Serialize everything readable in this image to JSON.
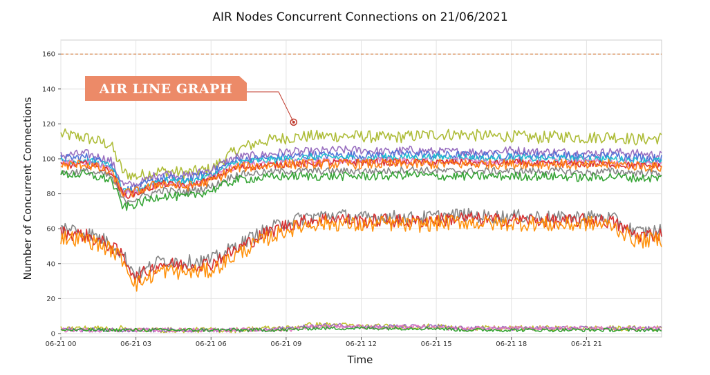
{
  "chart_data": {
    "type": "line",
    "title": "AIR Nodes Concurrent Connections on 21/06/2021",
    "xlabel": "Time",
    "ylabel": "Number of Concurrent Connections",
    "x_ticks": [
      "06-21 00",
      "06-21 03",
      "06-21 06",
      "06-21 09",
      "06-21 12",
      "06-21 15",
      "06-21 18",
      "06-21 21"
    ],
    "x_tick_hours": [
      0,
      3,
      6,
      9,
      12,
      15,
      18,
      21
    ],
    "xlim_hours": [
      0,
      24
    ],
    "y_ticks": [
      0,
      20,
      40,
      60,
      80,
      100,
      120,
      140,
      160
    ],
    "ylim": [
      -2,
      168
    ],
    "grid": true,
    "threshold": {
      "value": 160,
      "color": "#d2691e",
      "style": "dashed"
    },
    "annotation": {
      "text": "AIR LINE GRAPH",
      "point_hour": 9.3,
      "point_value": 121,
      "fill": "#ec8a68",
      "point_color": "#c0392b"
    },
    "x_hours": [
      0,
      1,
      2,
      2.5,
      3,
      4,
      5,
      6,
      7,
      8,
      9,
      10,
      11,
      12,
      13,
      14,
      15,
      16,
      17,
      18,
      19,
      20,
      21,
      22,
      23,
      24
    ],
    "series": [
      {
        "color": "#a9b82c",
        "noise": 3.5,
        "values": [
          114,
          112,
          108,
          92,
          90,
          93,
          92,
          94,
          105,
          110,
          112,
          113,
          113,
          113,
          112,
          113,
          114,
          114,
          113,
          113,
          112,
          113,
          112,
          113,
          111,
          112
        ]
      },
      {
        "color": "#9467bd",
        "noise": 2.5,
        "values": [
          102,
          103,
          99,
          85,
          85,
          92,
          90,
          94,
          101,
          102,
          104,
          104,
          105,
          105,
          104,
          105,
          104,
          104,
          104,
          105,
          104,
          104,
          103,
          104,
          103,
          102
        ]
      },
      {
        "color": "#4a6fd6",
        "noise": 2.5,
        "values": [
          100,
          101,
          97,
          82,
          83,
          89,
          88,
          92,
          99,
          100,
          101,
          102,
          102,
          102,
          102,
          103,
          102,
          102,
          102,
          102,
          102,
          102,
          101,
          102,
          101,
          100
        ]
      },
      {
        "color": "#17becf",
        "noise": 2.0,
        "values": [
          99,
          99,
          96,
          81,
          82,
          88,
          87,
          90,
          98,
          99,
          100,
          101,
          101,
          100,
          101,
          101,
          101,
          101,
          100,
          101,
          100,
          100,
          100,
          100,
          99,
          99
        ]
      },
      {
        "color": "#e377c2",
        "noise": 2.0,
        "values": [
          97,
          98,
          94,
          80,
          81,
          86,
          85,
          89,
          96,
          97,
          98,
          98,
          99,
          99,
          99,
          99,
          98,
          99,
          98,
          99,
          98,
          98,
          98,
          98,
          97,
          97
        ]
      },
      {
        "color": "#d62728",
        "noise": 2.0,
        "values": [
          96,
          97,
          93,
          79,
          80,
          86,
          84,
          88,
          95,
          96,
          97,
          97,
          98,
          98,
          98,
          98,
          98,
          98,
          97,
          98,
          97,
          97,
          97,
          97,
          96,
          96
        ]
      },
      {
        "color": "#ff7f0e",
        "noise": 3.0,
        "values": [
          96,
          97,
          92,
          80,
          81,
          86,
          84,
          87,
          95,
          96,
          97,
          97,
          97,
          97,
          97,
          97,
          97,
          97,
          97,
          97,
          97,
          97,
          96,
          97,
          96,
          95
        ]
      },
      {
        "color": "#7f7f7f",
        "noise": 2.0,
        "values": [
          92,
          93,
          90,
          76,
          77,
          82,
          81,
          84,
          91,
          92,
          93,
          93,
          93,
          93,
          93,
          94,
          93,
          93,
          93,
          93,
          93,
          93,
          92,
          93,
          92,
          92
        ]
      },
      {
        "color": "#2ca02c",
        "noise": 2.5,
        "values": [
          91,
          91,
          88,
          72,
          74,
          79,
          78,
          82,
          88,
          89,
          90,
          90,
          90,
          90,
          90,
          91,
          90,
          90,
          90,
          90,
          90,
          90,
          89,
          90,
          89,
          89
        ]
      },
      {
        "color": "#808080",
        "noise": 4.0,
        "values": [
          61,
          58,
          52,
          45,
          33,
          42,
          41,
          42,
          50,
          58,
          64,
          67,
          68,
          66,
          67,
          66,
          67,
          68,
          67,
          67,
          67,
          66,
          67,
          66,
          58,
          59
        ]
      },
      {
        "color": "#d62728",
        "noise": 4.0,
        "values": [
          58,
          56,
          50,
          44,
          32,
          40,
          39,
          40,
          48,
          56,
          62,
          65,
          66,
          64,
          65,
          64,
          65,
          66,
          65,
          65,
          65,
          64,
          65,
          64,
          56,
          57
        ]
      },
      {
        "color": "#ff8c00",
        "noise": 4.5,
        "values": [
          55,
          54,
          48,
          42,
          28,
          36,
          35,
          36,
          45,
          53,
          59,
          63,
          63,
          62,
          63,
          62,
          63,
          64,
          63,
          63,
          63,
          62,
          63,
          62,
          53,
          54
        ]
      },
      {
        "color": "#bcbd22",
        "noise": 1.5,
        "values": [
          3,
          3,
          3,
          3,
          2,
          2,
          2,
          2,
          2,
          3,
          3,
          5,
          5,
          4,
          4,
          4,
          4,
          3,
          3,
          3,
          3,
          3,
          3,
          3,
          3,
          3
        ]
      },
      {
        "color": "#9467bd",
        "noise": 1.2,
        "values": [
          3,
          2,
          2,
          2,
          2,
          2,
          2,
          2,
          2,
          2,
          3,
          4,
          5,
          4,
          4,
          4,
          4,
          3,
          3,
          3,
          3,
          3,
          3,
          3,
          3,
          3
        ]
      },
      {
        "color": "#e377c2",
        "noise": 1.2,
        "values": [
          2,
          2,
          2,
          2,
          2,
          2,
          2,
          2,
          2,
          2,
          2,
          4,
          4,
          4,
          3,
          4,
          3,
          3,
          3,
          3,
          3,
          3,
          3,
          3,
          3,
          3
        ]
      },
      {
        "color": "#2ca02c",
        "noise": 1.0,
        "values": [
          2,
          2,
          2,
          2,
          2,
          2,
          2,
          2,
          2,
          2,
          2,
          3,
          3,
          3,
          3,
          3,
          3,
          2,
          2,
          2,
          2,
          2,
          2,
          2,
          2,
          2
        ]
      }
    ]
  }
}
